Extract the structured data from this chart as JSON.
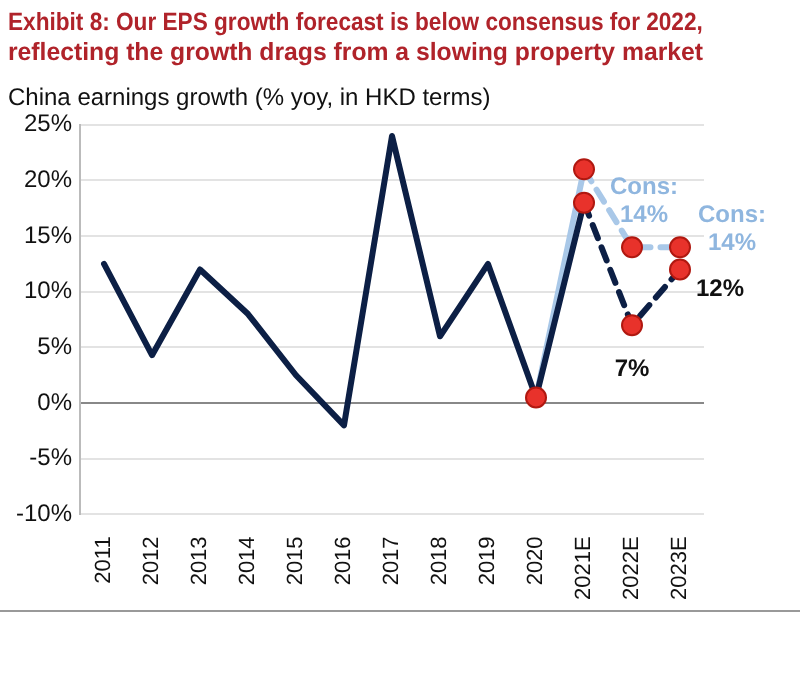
{
  "chart_data": {
    "type": "line",
    "title": [
      "Exhibit 8: Our EPS growth forecast is below consensus for 2022,",
      "reflecting the growth drags from a slowing property market"
    ],
    "ylabel": "China earnings growth (% yoy, in HKD terms)",
    "categories": [
      "2011",
      "2012",
      "2013",
      "2014",
      "2015",
      "2016",
      "2017",
      "2018",
      "2019",
      "2020",
      "2021E",
      "2022E",
      "2023E"
    ],
    "series": [
      {
        "color": "#0c1f45",
        "line_style": "solid",
        "values": [
          12.5,
          4.3,
          12,
          8,
          2.5,
          -2,
          24,
          6,
          12.5,
          0.5,
          18,
          null,
          null
        ]
      },
      {
        "color": "#0c1f45",
        "line_style": "dashed",
        "values": [
          null,
          null,
          null,
          null,
          null,
          null,
          null,
          null,
          null,
          null,
          18,
          7,
          12
        ]
      },
      {
        "color": "#a9c8e8",
        "line_style": "solid",
        "values": [
          null,
          null,
          null,
          null,
          null,
          null,
          null,
          null,
          null,
          0.5,
          21,
          null,
          null
        ]
      },
      {
        "color": "#a9c8e8",
        "line_style": "dashed",
        "values": [
          null,
          null,
          null,
          null,
          null,
          null,
          null,
          null,
          null,
          null,
          21,
          14,
          14
        ]
      },
      {
        "type": "scatter",
        "marker": "circle",
        "color": "#e8322b",
        "values": [
          null,
          null,
          null,
          null,
          null,
          null,
          null,
          null,
          null,
          0.5,
          18,
          7,
          12
        ]
      },
      {
        "type": "scatter",
        "marker": "circle",
        "color": "#e8322b",
        "values": [
          null,
          null,
          null,
          null,
          null,
          null,
          null,
          null,
          null,
          null,
          21,
          14,
          14
        ]
      }
    ],
    "ylim": [
      -10,
      25
    ],
    "yticks": [
      {
        "value": -10,
        "label": "-10%"
      },
      {
        "value": -5,
        "label": "-5%"
      },
      {
        "value": 0,
        "label": "0%"
      },
      {
        "value": 5,
        "label": "5%"
      },
      {
        "value": 10,
        "label": "10%"
      },
      {
        "value": 15,
        "label": "15%"
      },
      {
        "value": 20,
        "label": "20%"
      },
      {
        "value": 25,
        "label": "25%"
      }
    ],
    "grid": "y",
    "legend": false,
    "annotations": [
      {
        "text": "Cons:\n14%",
        "x": "2022E",
        "y": 14
      },
      {
        "text": "Cons:\n14%",
        "x": "2023E",
        "y": 14
      },
      {
        "text": "7%",
        "x": "2022E",
        "y": 7
      },
      {
        "text": "12%",
        "x": "2023E",
        "y": 12
      }
    ]
  }
}
